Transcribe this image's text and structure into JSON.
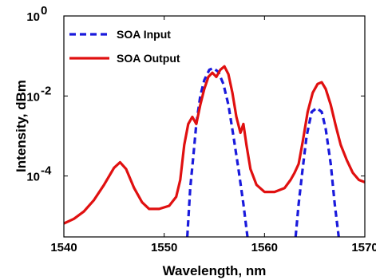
{
  "chart_data": {
    "type": "line",
    "title": "",
    "xlabel": "Wavelength, nm",
    "ylabel": "Intensity, dBm",
    "xlim": [
      1540,
      1570
    ],
    "ylim": [
      3e-06,
      1
    ],
    "yscale": "log",
    "grid": false,
    "legend_position": "top-left",
    "x_ticks": [
      1540,
      1550,
      1560,
      1570
    ],
    "x_tick_labels": [
      "1540",
      "1550",
      "1560",
      "1570"
    ],
    "y_ticks": [
      0.0001,
      0.01,
      1
    ],
    "y_tick_labels": [
      {
        "base": "10",
        "exp": "-4"
      },
      {
        "base": "10",
        "exp": "-2"
      },
      {
        "base": "10",
        "exp": "0"
      }
    ],
    "series": [
      {
        "name": "SOA Input",
        "color": "#1a1adc",
        "style": "dashed",
        "points": [
          [
            1552.3,
            3e-06
          ],
          [
            1552.6,
            5e-05
          ],
          [
            1552.9,
            0.0003
          ],
          [
            1553.2,
            0.002
          ],
          [
            1553.6,
            0.01
          ],
          [
            1554.0,
            0.025
          ],
          [
            1554.5,
            0.045
          ],
          [
            1554.9,
            0.05
          ],
          [
            1555.4,
            0.04
          ],
          [
            1555.9,
            0.02
          ],
          [
            1556.4,
            0.006
          ],
          [
            1556.9,
            0.001
          ],
          [
            1557.4,
            0.00015
          ],
          [
            1557.9,
            2e-05
          ],
          [
            1558.3,
            3e-06
          ]
        ]
      },
      {
        "name": "SOA Input",
        "color": "#1a1adc",
        "style": "dashed",
        "points": [
          [
            1563.1,
            3e-06
          ],
          [
            1563.4,
            2e-05
          ],
          [
            1563.8,
            0.00015
          ],
          [
            1564.2,
            0.001
          ],
          [
            1564.7,
            0.004
          ],
          [
            1565.2,
            0.005
          ],
          [
            1565.7,
            0.004
          ],
          [
            1566.1,
            0.0015
          ],
          [
            1566.6,
            0.0002
          ],
          [
            1567.0,
            2e-05
          ],
          [
            1567.4,
            3e-06
          ]
        ]
      },
      {
        "name": "SOA Output",
        "color": "#e01010",
        "style": "solid",
        "points": [
          [
            1540.0,
            6.5e-06
          ],
          [
            1541.0,
            8.5e-06
          ],
          [
            1542.0,
            1.3e-05
          ],
          [
            1543.0,
            2.5e-05
          ],
          [
            1544.0,
            6e-05
          ],
          [
            1545.0,
            0.00016
          ],
          [
            1545.6,
            0.00022
          ],
          [
            1546.2,
            0.00015
          ],
          [
            1547.0,
            5e-05
          ],
          [
            1547.8,
            2.2e-05
          ],
          [
            1548.5,
            1.5e-05
          ],
          [
            1549.5,
            1.5e-05
          ],
          [
            1550.5,
            1.8e-05
          ],
          [
            1551.2,
            3e-05
          ],
          [
            1551.6,
            8e-05
          ],
          [
            1552.0,
            0.0006
          ],
          [
            1552.4,
            0.002
          ],
          [
            1552.8,
            0.003
          ],
          [
            1553.2,
            0.002
          ],
          [
            1553.6,
            0.006
          ],
          [
            1554.0,
            0.015
          ],
          [
            1554.4,
            0.03
          ],
          [
            1554.8,
            0.038
          ],
          [
            1555.2,
            0.03
          ],
          [
            1555.6,
            0.045
          ],
          [
            1556.0,
            0.055
          ],
          [
            1556.4,
            0.035
          ],
          [
            1556.8,
            0.012
          ],
          [
            1557.2,
            0.003
          ],
          [
            1557.6,
            0.0012
          ],
          [
            1557.9,
            0.002
          ],
          [
            1558.2,
            0.0006
          ],
          [
            1558.6,
            0.00015
          ],
          [
            1559.2,
            6e-05
          ],
          [
            1560.0,
            4e-05
          ],
          [
            1561.0,
            4e-05
          ],
          [
            1562.0,
            5e-05
          ],
          [
            1562.6,
            8e-05
          ],
          [
            1563.0,
            0.00012
          ],
          [
            1563.4,
            0.0002
          ],
          [
            1563.8,
            0.0007
          ],
          [
            1564.3,
            0.004
          ],
          [
            1564.8,
            0.012
          ],
          [
            1565.3,
            0.02
          ],
          [
            1565.7,
            0.022
          ],
          [
            1566.1,
            0.015
          ],
          [
            1566.6,
            0.006
          ],
          [
            1567.1,
            0.0018
          ],
          [
            1567.6,
            0.0006
          ],
          [
            1568.2,
            0.00025
          ],
          [
            1568.8,
            0.00012
          ],
          [
            1569.4,
            8e-05
          ],
          [
            1570.0,
            7e-05
          ]
        ]
      }
    ],
    "legend": [
      {
        "label": "SOA Input",
        "color": "#1a1adc",
        "style": "dashed"
      },
      {
        "label": "SOA Output",
        "color": "#e01010",
        "style": "solid"
      }
    ]
  }
}
